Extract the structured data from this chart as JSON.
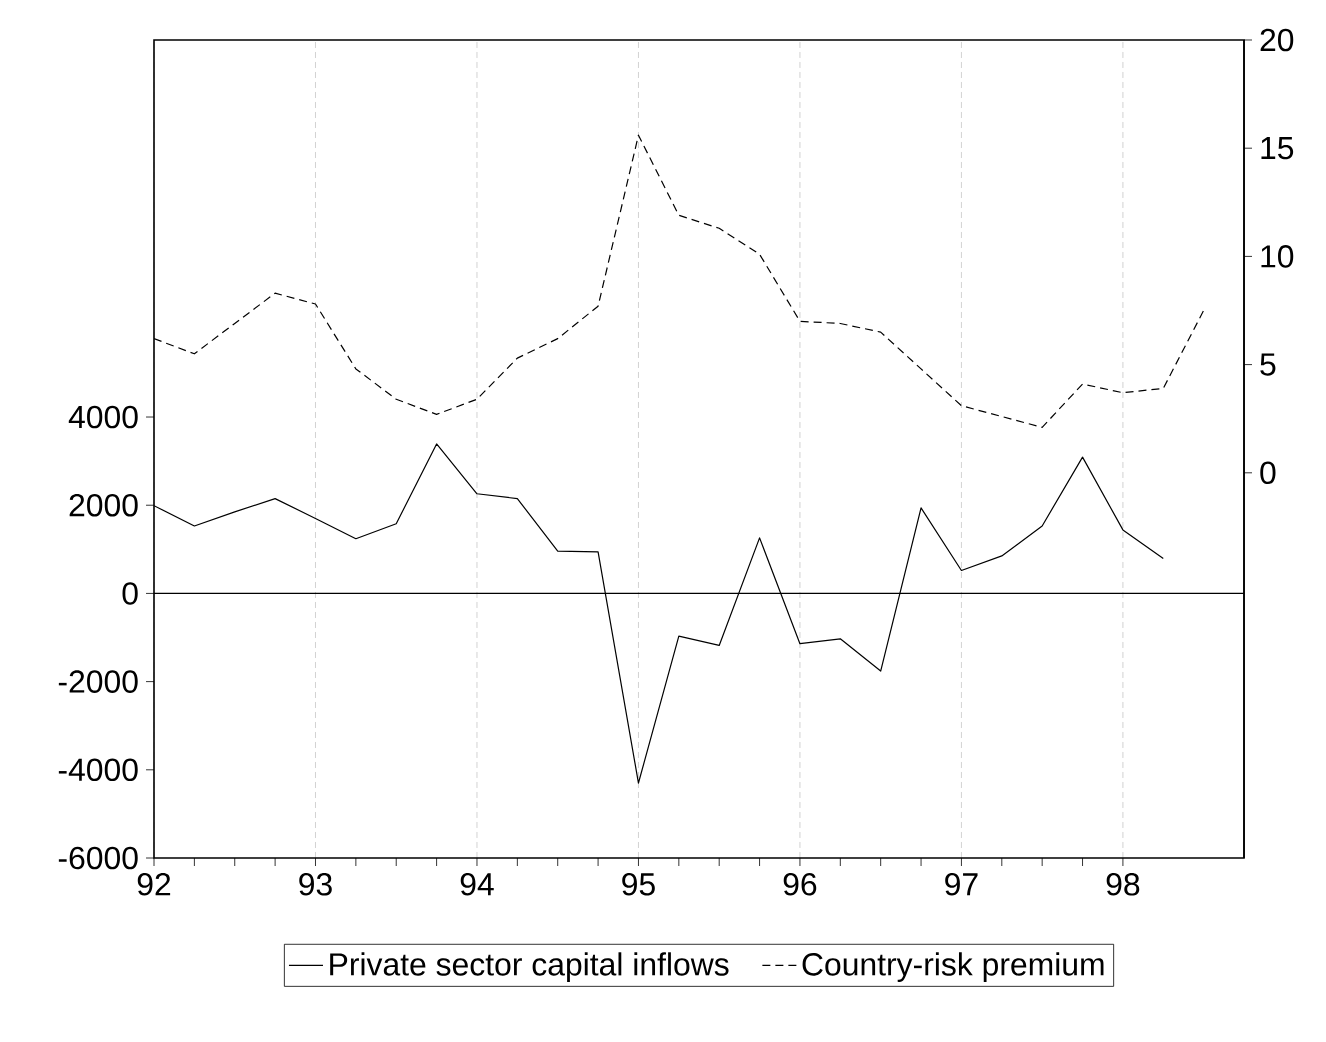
{
  "chart_data": {
    "type": "line",
    "xlim": [
      1992,
      1998.75
    ],
    "xticks": [
      {
        "value": 1992,
        "label": "92"
      },
      {
        "value": 1993,
        "label": "93"
      },
      {
        "value": 1994,
        "label": "94"
      },
      {
        "value": 1995,
        "label": "95"
      },
      {
        "value": 1996,
        "label": "96"
      },
      {
        "value": 1997,
        "label": "97"
      },
      {
        "value": 1998,
        "label": "98"
      }
    ],
    "ylim": [
      -6000,
      12550
    ],
    "yticks": [
      -6000,
      -2000,
      0,
      2000,
      4000,
      -4000
    ],
    "y2lim": [
      -17.8,
      20
    ],
    "y2ticks": [
      0,
      5,
      10,
      15,
      20
    ],
    "grid": "x",
    "legend": "bottom",
    "ref_lines": [
      {
        "axis": "y",
        "value": 0,
        "color": "#000000",
        "line_style": "solid"
      }
    ],
    "series": [
      {
        "name": "Private sector capital inflows",
        "color": "#000000",
        "line_style": "solid",
        "x": [
          1992,
          1992.25,
          1992.5,
          1992.75,
          1993,
          1993.25,
          1993.5,
          1993.75,
          1994,
          1994.25,
          1994.5,
          1994.75,
          1995,
          1995.25,
          1995.5,
          1995.75,
          1996,
          1996.25,
          1996.5,
          1996.75,
          1997,
          1997.25,
          1997.5,
          1997.75,
          1998,
          1998.25
        ],
        "values": [
          1990,
          1530,
          1850,
          2150,
          1700,
          1240,
          1580,
          3390,
          2260,
          2150,
          960,
          940,
          -4300,
          -970,
          -1180,
          1260,
          -1140,
          -1030,
          -1760,
          1940,
          520,
          850,
          1530,
          3090,
          1440,
          790
        ]
      },
      {
        "name": "Country-risk premium",
        "color": "#000000",
        "line_style": "dashed",
        "axis": "y2",
        "x": [
          1992,
          1992.25,
          1992.5,
          1992.75,
          1993,
          1993.25,
          1993.5,
          1993.75,
          1994,
          1994.25,
          1994.5,
          1994.75,
          1995,
          1995.25,
          1995.5,
          1995.75,
          1996,
          1996.25,
          1996.5,
          1996.75,
          1997,
          1997.25,
          1997.5,
          1997.75,
          1998,
          1998.25,
          1998.5
        ],
        "values": [
          6.2,
          5.5,
          6.9,
          8.3,
          7.8,
          4.8,
          3.4,
          2.7,
          3.4,
          5.3,
          6.2,
          7.7,
          15.6,
          11.9,
          11.3,
          10.1,
          7.0,
          6.9,
          6.5,
          4.8,
          3.1,
          2.6,
          2.1,
          4.1,
          3.7,
          3.9,
          7.5
        ]
      }
    ]
  }
}
